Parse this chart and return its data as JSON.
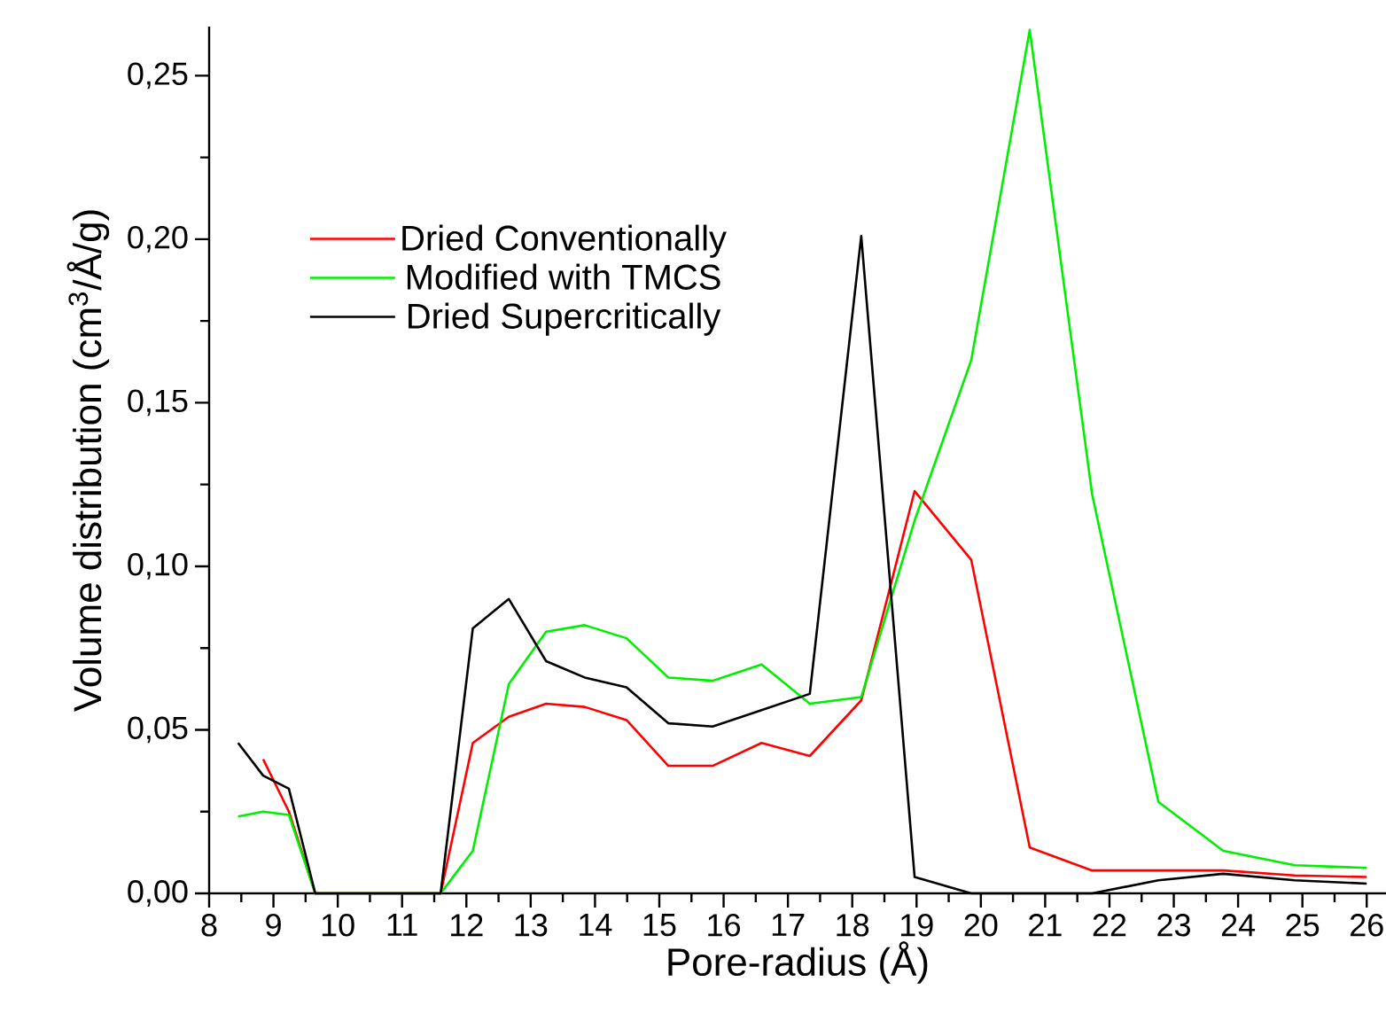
{
  "chart_data": {
    "type": "line",
    "xlabel": "Pore-radius (Å)",
    "ylabel": "Volume distribution (cm$^{3}$/Å/g)",
    "xlim": [
      8,
      26.3
    ],
    "xticks": [
      8,
      9,
      10,
      11,
      12,
      13,
      14,
      15,
      16,
      17,
      18,
      19,
      20,
      21,
      22,
      23,
      24,
      25,
      26
    ],
    "ylim": [
      0,
      0.265
    ],
    "yticks": [
      {
        "value": 0,
        "label": "0,00"
      },
      {
        "value": 0.05,
        "label": "0,05"
      },
      {
        "value": 0.1,
        "label": "0,10"
      },
      {
        "value": 0.15,
        "label": "0,15"
      },
      {
        "value": 0.2,
        "label": "0,20"
      },
      {
        "value": 0.25,
        "label": "0,25"
      }
    ],
    "grid": false,
    "legend": "top left",
    "marker": "none",
    "line_style": "solid",
    "series": [
      {
        "name": "Dried Conventionally",
        "color": "#ff0000",
        "x": [
          8.84,
          9.24,
          9.65,
          11.6,
          12.1,
          12.66,
          13.24,
          13.84,
          14.49,
          15.14,
          15.83,
          16.59,
          17.34,
          18.14,
          18.97,
          19.85,
          20.76,
          21.73,
          22.76,
          23.77,
          24.88,
          26.0
        ],
        "values": [
          0.041,
          0.025,
          0,
          0,
          0.046,
          0.054,
          0.058,
          0.057,
          0.053,
          0.039,
          0.039,
          0.046,
          0.042,
          0.059,
          0.123,
          0.102,
          0.014,
          0.007,
          0.007,
          0.007,
          0.0055,
          0.005
        ]
      },
      {
        "name": "Modified with TMCS",
        "color": "#00ee00",
        "x": [
          8.45,
          8.84,
          9.24,
          9.65,
          11.6,
          12.1,
          12.66,
          13.24,
          13.84,
          14.49,
          15.14,
          15.83,
          16.59,
          17.34,
          18.14,
          18.97,
          19.85,
          20.76,
          21.73,
          22.76,
          23.77,
          24.88,
          26.0
        ],
        "values": [
          0.0235,
          0.025,
          0.024,
          0,
          0,
          0.013,
          0.064,
          0.08,
          0.082,
          0.078,
          0.066,
          0.065,
          0.07,
          0.058,
          0.06,
          0.114,
          0.163,
          0.264,
          0.122,
          0.028,
          0.013,
          0.0086,
          0.0078
        ]
      },
      {
        "name": "Dried Supercritically",
        "color": "#000000",
        "x": [
          8.45,
          8.84,
          9.24,
          9.65,
          11.6,
          12.1,
          12.66,
          13.24,
          13.84,
          14.49,
          15.14,
          15.83,
          16.59,
          17.34,
          18.14,
          18.97,
          19.85,
          20.76,
          21.73,
          22.76,
          23.77,
          24.88,
          26.0
        ],
        "values": [
          0.046,
          0.036,
          0.032,
          0,
          0,
          0.081,
          0.09,
          0.071,
          0.066,
          0.063,
          0.052,
          0.051,
          0.056,
          0.061,
          0.201,
          0.005,
          0,
          0,
          0,
          0.004,
          0.006,
          0.004,
          0.003
        ]
      }
    ]
  }
}
